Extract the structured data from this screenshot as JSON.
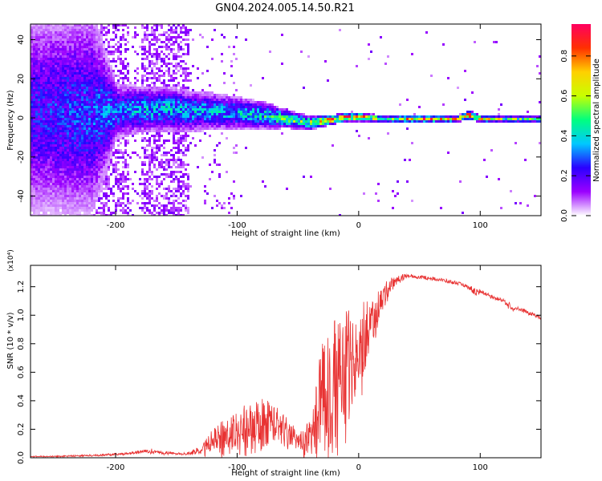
{
  "title": "GN04.2024.005.14.50.R21",
  "colors": {
    "snr_line": "#e83232",
    "axis": "#000000",
    "background": "#ffffff"
  },
  "chart_data": [
    {
      "type": "heatmap",
      "xlabel": "Height of straight line (km)",
      "ylabel": "Frequency (Hz)",
      "xlim": [
        -270,
        150
      ],
      "ylim": [
        -50,
        48
      ],
      "xticks": [
        -200,
        -100,
        0,
        100
      ],
      "yticks": [
        -40,
        -20,
        0,
        20,
        40
      ],
      "grid": false,
      "colorbar": {
        "label": "Normalized spectral amplitude",
        "range": [
          0.0,
          0.96
        ],
        "ticks": [
          "0.0",
          "0.2",
          "0.4",
          "0.6",
          "0.8"
        ],
        "tick_values": [
          0.0,
          0.2,
          0.4,
          0.6,
          0.8
        ],
        "colormap": [
          "#ffffff",
          "#9b00ff",
          "#2a00ff",
          "#00c8ff",
          "#00ff7f",
          "#c8ff00",
          "#ffd000",
          "#ff3000",
          "#ff0060"
        ]
      },
      "ridge": {
        "x": [
          -270,
          -220,
          -200,
          -180,
          -160,
          -140,
          -120,
          -100,
          -80,
          -60,
          -50,
          -40,
          -30,
          -20,
          -10,
          0,
          20,
          40,
          60,
          80,
          90,
          100,
          120,
          150
        ],
        "center_hz": [
          3,
          3,
          4,
          5,
          5,
          4,
          4,
          3,
          2,
          0,
          -1,
          -2,
          -1,
          0,
          1,
          1,
          0,
          0,
          0,
          0,
          2,
          0,
          0,
          0
        ],
        "half_width_hz": [
          45,
          45,
          12,
          10,
          10,
          9,
          8,
          7,
          6,
          4,
          3.5,
          3,
          2.5,
          2,
          2,
          2,
          1.5,
          1.5,
          1.5,
          1.5,
          2,
          1.5,
          1.5,
          1.5
        ],
        "peak_amplitude": [
          0.25,
          0.3,
          0.35,
          0.4,
          0.4,
          0.4,
          0.4,
          0.4,
          0.45,
          0.6,
          0.55,
          0.65,
          0.75,
          0.8,
          0.85,
          0.8,
          0.6,
          0.85,
          0.85,
          0.7,
          0.9,
          0.7,
          0.6,
          0.6
        ]
      }
    },
    {
      "type": "line",
      "xlabel": "Height of straight line (km)",
      "ylabel": "SNR (10 * v/v)",
      "y_multiplier": "(x10⁴)",
      "xlim": [
        -270,
        150
      ],
      "ylim": [
        0.0,
        1.35
      ],
      "xticks": [
        -200,
        -100,
        0,
        100
      ],
      "yticks": [
        0.0,
        0.2,
        0.4,
        0.6,
        0.8,
        1.0,
        1.2
      ],
      "ytick_labels": [
        "0.0",
        "0.2",
        "0.4",
        "0.6",
        "0.8",
        "1.0",
        "1.2"
      ],
      "grid": false,
      "series": [
        {
          "x": [
            -270,
            -250,
            -230,
            -210,
            -190,
            -170,
            -160,
            -150,
            -140,
            -130,
            -120,
            -110,
            -100,
            -90,
            -80,
            -70,
            -60,
            -50,
            -45,
            -40,
            -35,
            -30,
            -25,
            -20,
            -15,
            -10,
            -5,
            0,
            5,
            10,
            15,
            20,
            25,
            30,
            40,
            50,
            60,
            70,
            80,
            90,
            95,
            100,
            110,
            120,
            125,
            130,
            140,
            150
          ],
          "y": [
            0.01,
            0.01,
            0.015,
            0.02,
            0.03,
            0.05,
            0.035,
            0.03,
            0.03,
            0.06,
            0.12,
            0.16,
            0.2,
            0.24,
            0.28,
            0.27,
            0.2,
            0.12,
            0.12,
            0.2,
            0.32,
            0.45,
            0.5,
            0.55,
            0.62,
            0.68,
            0.72,
            0.78,
            0.85,
            0.95,
            1.05,
            1.13,
            1.2,
            1.25,
            1.28,
            1.27,
            1.26,
            1.245,
            1.23,
            1.2,
            1.17,
            1.17,
            1.13,
            1.1,
            1.06,
            1.05,
            1.02,
            0.98
          ],
          "noise": [
            0.003,
            0.004,
            0.005,
            0.006,
            0.008,
            0.015,
            0.01,
            0.008,
            0.008,
            0.03,
            0.08,
            0.12,
            0.14,
            0.15,
            0.16,
            0.12,
            0.09,
            0.07,
            0.08,
            0.14,
            0.25,
            0.35,
            0.4,
            0.42,
            0.4,
            0.38,
            0.35,
            0.3,
            0.25,
            0.18,
            0.12,
            0.08,
            0.06,
            0.03,
            0.012,
            0.012,
            0.012,
            0.012,
            0.012,
            0.012,
            0.03,
            0.012,
            0.012,
            0.012,
            0.025,
            0.012,
            0.012,
            0.012
          ]
        }
      ]
    }
  ]
}
